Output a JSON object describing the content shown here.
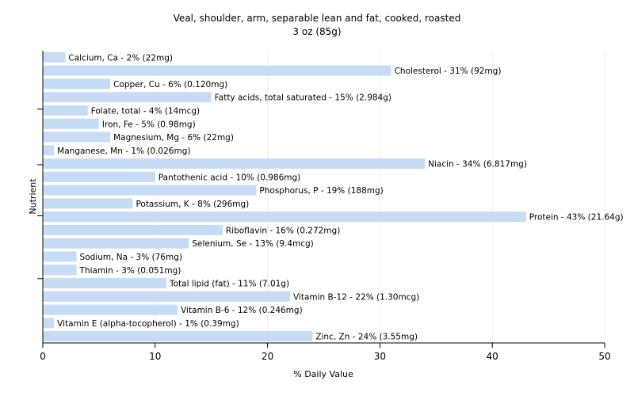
{
  "chart_data": {
    "type": "bar",
    "orientation": "horizontal",
    "title": "Veal, shoulder, arm, separable lean and fat, cooked, roasted",
    "subtitle": "3 oz (85g)",
    "xlabel": "% Daily Value",
    "ylabel": "Nutrient",
    "xlim": [
      0,
      50
    ],
    "xticks": [
      "0",
      "10",
      "20",
      "30",
      "40",
      "50"
    ],
    "grid": true,
    "bar_color": "#c6dcf5",
    "categories": [
      "Calcium, Ca",
      "Cholesterol",
      "Copper, Cu",
      "Fatty acids, total saturated",
      "Folate, total",
      "Iron, Fe",
      "Magnesium, Mg",
      "Manganese, Mn",
      "Niacin",
      "Pantothenic acid",
      "Phosphorus, P",
      "Potassium, K",
      "Protein",
      "Riboflavin",
      "Selenium, Se",
      "Sodium, Na",
      "Thiamin",
      "Total lipid (fat)",
      "Vitamin B-12",
      "Vitamin B-6",
      "Vitamin E (alpha-tocopherol)",
      "Zinc, Zn"
    ],
    "values": [
      2,
      31,
      6,
      15,
      4,
      5,
      6,
      1,
      34,
      10,
      19,
      8,
      43,
      16,
      13,
      3,
      3,
      11,
      22,
      12,
      1,
      24
    ],
    "labels": [
      "Calcium, Ca - 2% (22mg)",
      "Cholesterol - 31% (92mg)",
      "Copper, Cu - 6% (0.120mg)",
      "Fatty acids, total saturated - 15% (2.984g)",
      "Folate, total - 4% (14mcg)",
      "Iron, Fe - 5% (0.98mg)",
      "Magnesium, Mg - 6% (22mg)",
      "Manganese, Mn - 1% (0.026mg)",
      "Niacin - 34% (6.817mg)",
      "Pantothenic acid - 10% (0.986mg)",
      "Phosphorus, P - 19% (188mg)",
      "Potassium, K - 8% (296mg)",
      "Protein - 43% (21.64g)",
      "Riboflavin - 16% (0.272mg)",
      "Selenium, Se - 13% (9.4mcg)",
      "Sodium, Na - 3% (76mg)",
      "Thiamin - 3% (0.051mg)",
      "Total lipid (fat) - 11% (7.01g)",
      "Vitamin B-12 - 22% (1.30mcg)",
      "Vitamin B-6 - 12% (0.246mg)",
      "Vitamin E (alpha-tocopherol) - 1% (0.39mg)",
      "Zinc, Zn - 24% (3.55mg)"
    ]
  }
}
